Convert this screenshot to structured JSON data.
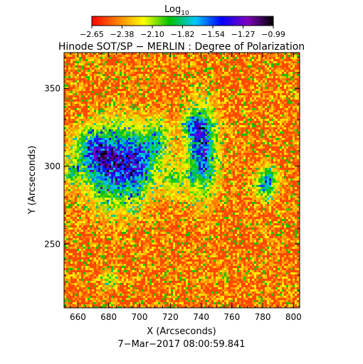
{
  "chart_data": {
    "type": "heatmap",
    "title": "Hinode SOT/SP − MERLIN : Degree of Polarization",
    "colorbar": {
      "label": "Log",
      "label_sub": "10",
      "ticks": [
        "−2.65",
        "−2.38",
        "−2.10",
        "−1.82",
        "−1.54",
        "−1.27",
        "−0.99"
      ],
      "range": [
        -2.65,
        -0.99
      ],
      "colormap": [
        "#ff0000",
        "#ff8000",
        "#ffff00",
        "#00c000",
        "#00c8ff",
        "#0000ff",
        "#8000c0",
        "#000000"
      ]
    },
    "xlabel": "X (Arcseconds)",
    "ylabel": "Y (Arcseconds)",
    "xlim": [
      651,
      804
    ],
    "ylim": [
      209,
      373
    ],
    "xticks": [
      "660",
      "680",
      "700",
      "720",
      "740",
      "760",
      "780",
      "800"
    ],
    "yticks": [
      "250",
      "300",
      "350"
    ],
    "timestamp": "7−Mar−2017 08:00:59.841",
    "field_description": "Mostly low polarization (red/orange) with speckled yellow/green noise; concentrated high-polarization patches (green to blue) near x≈670–700, y≈280–320 and x≈730–750, y≈290–330, with smaller patches near x≈780, y≈290.",
    "grid": false
  }
}
